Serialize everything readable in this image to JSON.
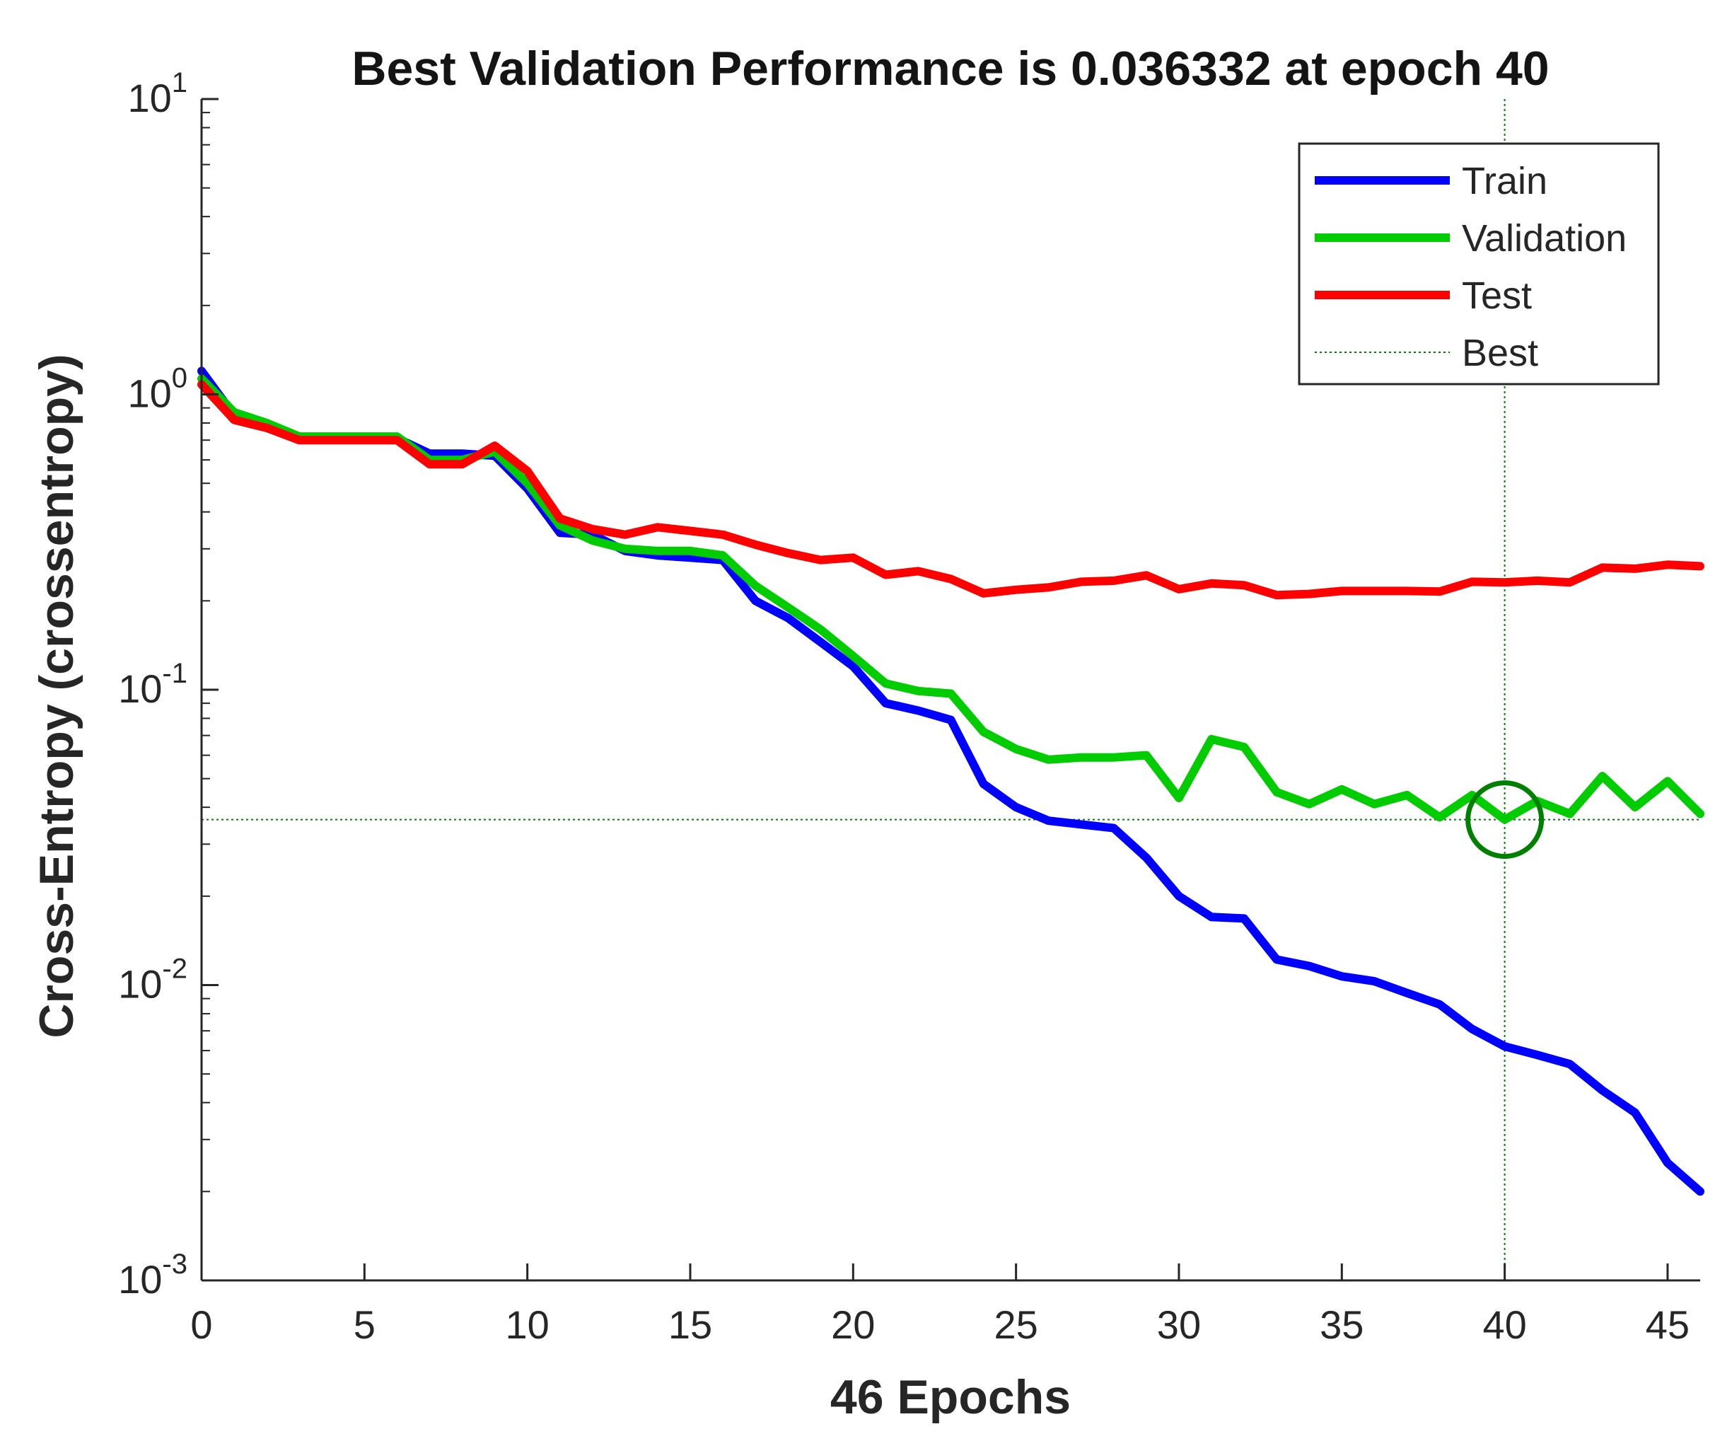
{
  "chart_data": {
    "type": "line",
    "title": "Best Validation Performance is 0.036332 at epoch 40",
    "xlabel": "46 Epochs",
    "ylabel": "Cross-Entropy  (crossentropy)",
    "yscale": "log",
    "xlim": [
      0,
      46
    ],
    "ylim": [
      0.001,
      10
    ],
    "xticks": [
      0,
      5,
      10,
      15,
      20,
      25,
      30,
      35,
      40,
      45
    ],
    "xtick_labels": [
      "0",
      "5",
      "10",
      "15",
      "20",
      "25",
      "30",
      "35",
      "40",
      "45"
    ],
    "yticks": [
      {
        "value": 10,
        "base": "10",
        "exp": "1"
      },
      {
        "value": 1,
        "base": "10",
        "exp": "0"
      },
      {
        "value": 0.1,
        "base": "10",
        "exp": "-1"
      },
      {
        "value": 0.01,
        "base": "10",
        "exp": "-2"
      },
      {
        "value": 0.001,
        "base": "10",
        "exp": "-3"
      }
    ],
    "x": [
      0,
      1,
      2,
      3,
      4,
      5,
      6,
      7,
      8,
      9,
      10,
      11,
      12,
      13,
      14,
      15,
      16,
      17,
      18,
      19,
      20,
      21,
      22,
      23,
      24,
      25,
      26,
      27,
      28,
      29,
      30,
      31,
      32,
      33,
      34,
      35,
      36,
      37,
      38,
      39,
      40,
      41,
      42,
      43,
      44,
      45,
      46
    ],
    "series": [
      {
        "name": "Train",
        "color": "#0000ff",
        "values": [
          1.2,
          0.85,
          0.78,
          0.71,
          0.71,
          0.71,
          0.71,
          0.63,
          0.63,
          0.62,
          0.48,
          0.34,
          0.335,
          0.295,
          0.285,
          0.28,
          0.275,
          0.2,
          0.175,
          0.145,
          0.12,
          0.09,
          0.085,
          0.079,
          0.048,
          0.04,
          0.036,
          0.035,
          0.034,
          0.027,
          0.02,
          0.017,
          0.0168,
          0.0122,
          0.0116,
          0.0107,
          0.0103,
          0.0094,
          0.0086,
          0.0071,
          0.0062,
          0.0058,
          0.0054,
          0.0044,
          0.0037,
          0.0025,
          0.002
        ]
      },
      {
        "name": "Validation",
        "color": "#00cc00",
        "values": [
          1.13,
          0.87,
          0.8,
          0.72,
          0.72,
          0.72,
          0.72,
          0.6,
          0.6,
          0.64,
          0.5,
          0.36,
          0.32,
          0.3,
          0.295,
          0.295,
          0.285,
          0.225,
          0.19,
          0.16,
          0.13,
          0.105,
          0.099,
          0.097,
          0.072,
          0.063,
          0.058,
          0.059,
          0.059,
          0.06,
          0.043,
          0.068,
          0.064,
          0.045,
          0.041,
          0.046,
          0.041,
          0.044,
          0.037,
          0.044,
          0.036332,
          0.042,
          0.038,
          0.051,
          0.04,
          0.049,
          0.038
        ]
      },
      {
        "name": "Test",
        "color": "#ff0000",
        "values": [
          1.08,
          0.82,
          0.77,
          0.7,
          0.7,
          0.7,
          0.7,
          0.58,
          0.58,
          0.67,
          0.55,
          0.38,
          0.35,
          0.335,
          0.355,
          0.345,
          0.335,
          0.31,
          0.29,
          0.275,
          0.28,
          0.245,
          0.252,
          0.237,
          0.212,
          0.218,
          0.222,
          0.232,
          0.234,
          0.244,
          0.219,
          0.229,
          0.226,
          0.209,
          0.211,
          0.216,
          0.216,
          0.216,
          0.215,
          0.232,
          0.231,
          0.234,
          0.231,
          0.259,
          0.257,
          0.265,
          0.262
        ]
      }
    ],
    "best": {
      "name": "Best",
      "epoch": 40,
      "value": 0.036332,
      "color": "#008000"
    },
    "legend": {
      "position": "top-right",
      "entries": [
        {
          "label": "Train",
          "color": "#0000ff",
          "style": "solid"
        },
        {
          "label": "Validation",
          "color": "#00cc00",
          "style": "solid"
        },
        {
          "label": "Test",
          "color": "#ff0000",
          "style": "solid"
        },
        {
          "label": "Best",
          "color": "#008000",
          "style": "dotted"
        }
      ]
    }
  }
}
